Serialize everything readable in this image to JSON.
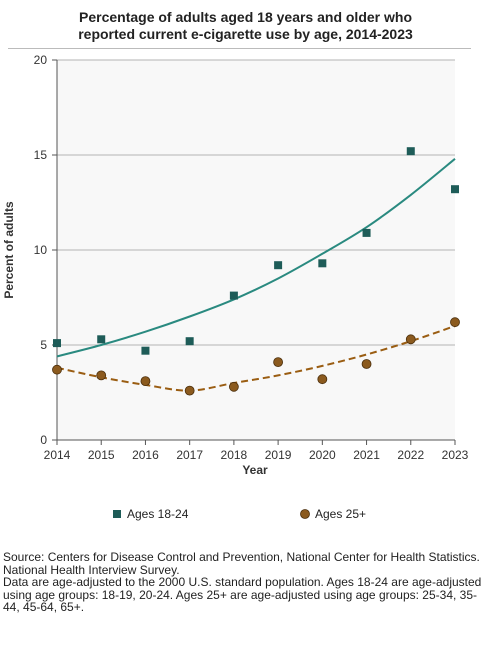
{
  "chart_data": {
    "type": "scatter",
    "title_line1": "Percentage of adults aged 18 years and older who",
    "title_line2": "reported current e-cigarette use by age, 2014-2023",
    "xlabel": "Year",
    "ylabel": "Percent of adults",
    "x": [
      2014,
      2015,
      2016,
      2017,
      2018,
      2019,
      2020,
      2021,
      2022,
      2023
    ],
    "xlim": [
      2014,
      2023
    ],
    "ylim": [
      0,
      20
    ],
    "yticks": [
      0,
      5,
      10,
      15,
      20
    ],
    "grid": true,
    "legend_position": "bottom",
    "series": [
      {
        "name": "Ages 18-24",
        "marker": "square",
        "color": "#1e5c58",
        "trend_color": "#2a8a80",
        "trend_style": "solid",
        "values": [
          5.1,
          5.3,
          4.7,
          5.2,
          7.6,
          9.2,
          9.3,
          10.9,
          15.2,
          13.2
        ],
        "trend": [
          4.4,
          5.0,
          5.7,
          6.5,
          7.4,
          8.5,
          9.8,
          11.2,
          12.9,
          14.8
        ]
      },
      {
        "name": "Ages 25+",
        "marker": "circle",
        "color": "#8b5a1e",
        "trend_color": "#9a5d12",
        "trend_style": "dashed",
        "values": [
          3.7,
          3.4,
          3.1,
          2.6,
          2.8,
          4.1,
          3.2,
          4.0,
          5.3,
          6.2
        ],
        "trend": [
          3.8,
          3.3,
          2.9,
          2.6,
          3.0,
          3.4,
          3.9,
          4.5,
          5.2,
          6.0
        ]
      }
    ]
  },
  "footnotes": {
    "line1": "Source: Centers for Disease Control and Prevention, National Center for Health Statistics.",
    "line2": "National Health Interview Survey.",
    "line3": "Data are age-adjusted to the 2000 U.S. standard population. Ages 18-24 are age-adjusted",
    "line4": "using age groups: 18-19, 20-24. Ages 25+ are age-adjusted using age groups: 25-34, 35-",
    "line5": "44, 45-64, 65+."
  }
}
